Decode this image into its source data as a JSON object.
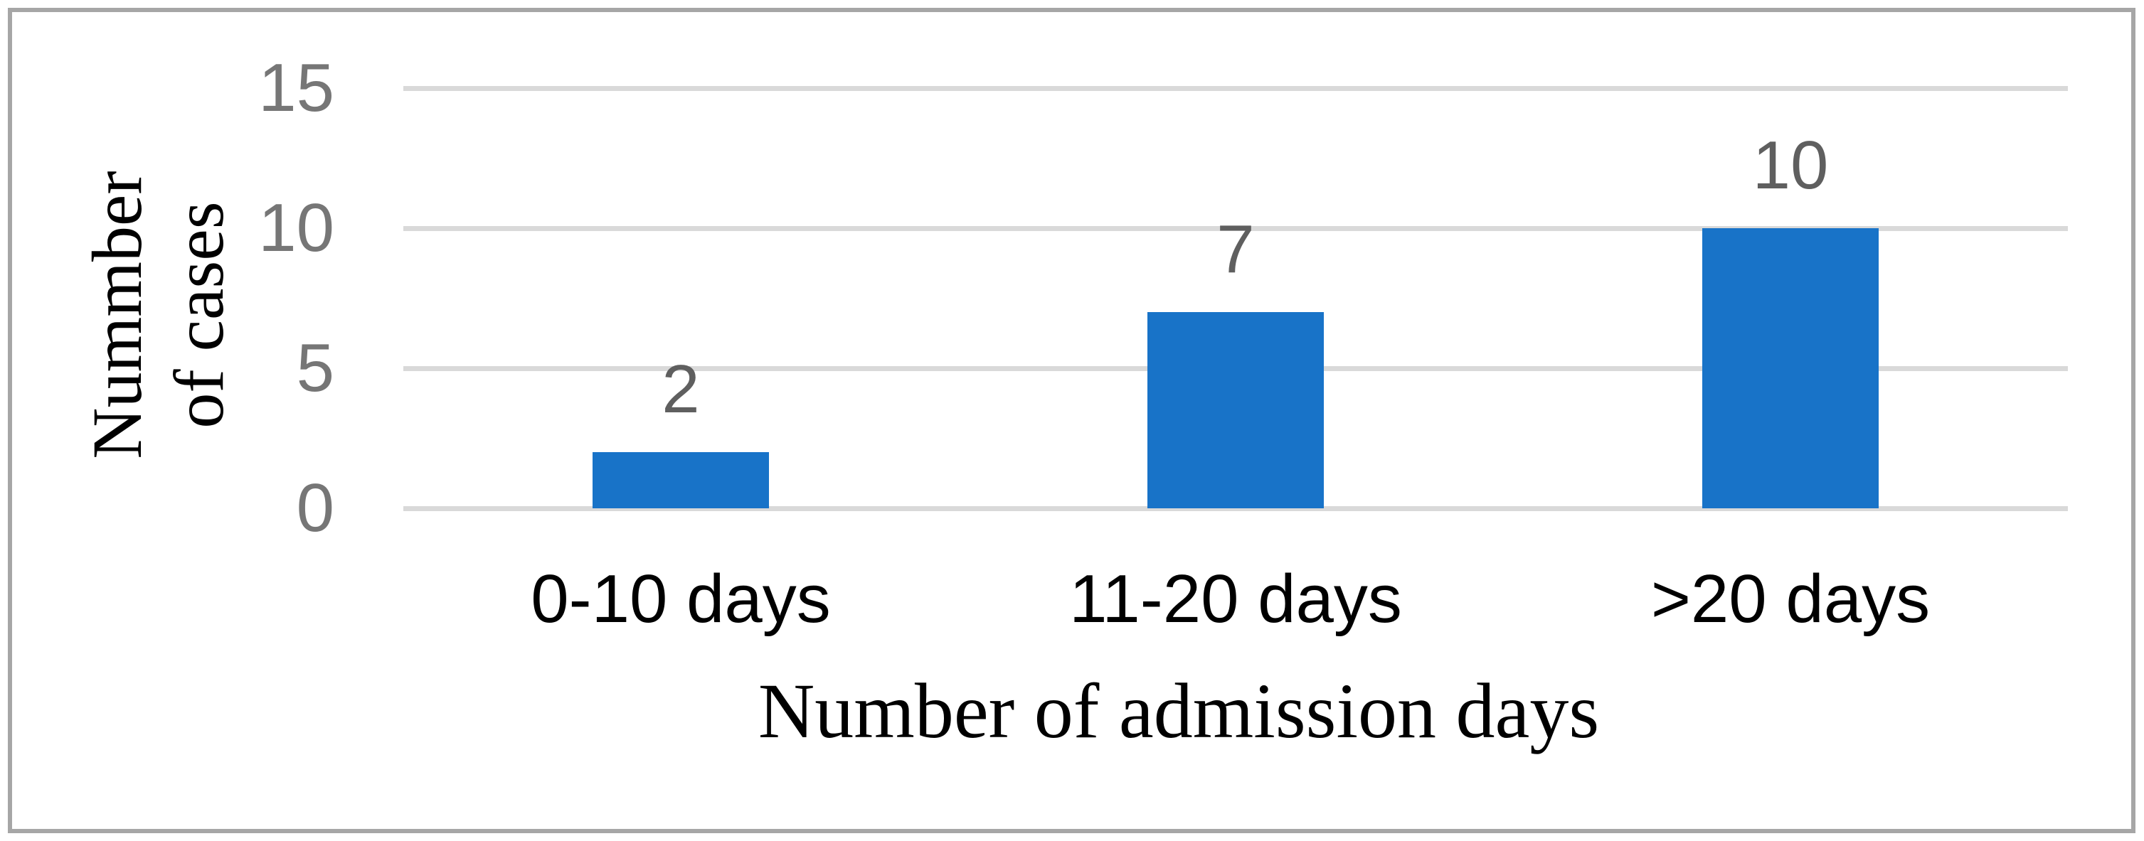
{
  "chart_data": {
    "type": "bar",
    "title": "",
    "categories": [
      "0-10 days",
      "11-20 days",
      ">20 days"
    ],
    "values": [
      2,
      7,
      10
    ],
    "data_labels": [
      "2",
      "7",
      "10"
    ],
    "xlabel": "Number of admission days",
    "ylabel": "Nummber of cases",
    "ylabel_lines": [
      "Nummber",
      "of cases"
    ],
    "yticks": [
      0,
      5,
      10,
      15
    ],
    "ylim": [
      0,
      15
    ],
    "grid": "horizontal",
    "legend_position": "none",
    "colors": {
      "bar": "#1873c8",
      "gridline": "#d9d9d9",
      "tick_label": "#767676",
      "data_label": "#5f5f5f",
      "category_label": "#000000",
      "axis_title": "#000000",
      "frame_border": "#a6a6a6",
      "background": "#ffffff"
    }
  }
}
